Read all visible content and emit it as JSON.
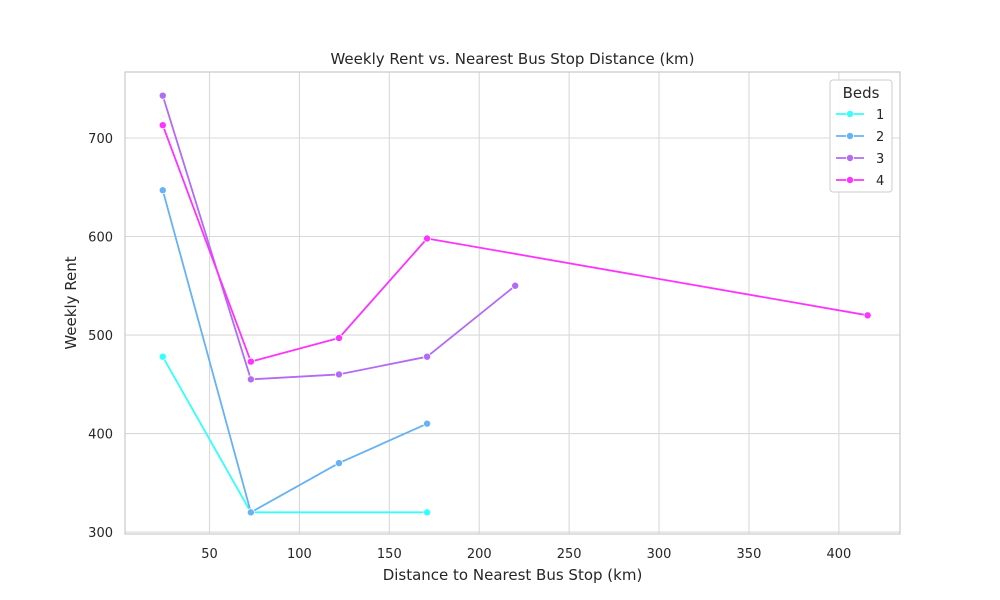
{
  "chart_data": {
    "type": "line",
    "title": "Weekly Rent vs. Nearest Bus Stop Distance (km)",
    "xlabel": "Distance to Nearest Bus Stop (km)",
    "ylabel": "Weekly Rent",
    "xlim": [
      3,
      434
    ],
    "ylim": [
      298,
      767
    ],
    "xticks": [
      50,
      100,
      150,
      200,
      250,
      300,
      350,
      400
    ],
    "yticks": [
      300,
      400,
      500,
      600,
      700
    ],
    "grid": true,
    "legend": {
      "title": "Beds",
      "placement": "top-right"
    },
    "series": [
      {
        "name": "1",
        "color": "#33ffff",
        "points": [
          [
            24,
            478
          ],
          [
            73,
            320
          ],
          [
            171,
            320
          ]
        ]
      },
      {
        "name": "2",
        "color": "#66b2f5",
        "points": [
          [
            24,
            647
          ],
          [
            73,
            320
          ],
          [
            122,
            370
          ],
          [
            171,
            410
          ]
        ]
      },
      {
        "name": "3",
        "color": "#b26bf5",
        "points": [
          [
            24,
            743
          ],
          [
            73,
            455
          ],
          [
            122,
            460
          ],
          [
            171,
            478
          ],
          [
            220,
            550
          ]
        ]
      },
      {
        "name": "4",
        "color": "#ff33ff",
        "points": [
          [
            24,
            713
          ],
          [
            73,
            473
          ],
          [
            122,
            497
          ],
          [
            171,
            598
          ],
          [
            416,
            520
          ]
        ]
      }
    ]
  }
}
